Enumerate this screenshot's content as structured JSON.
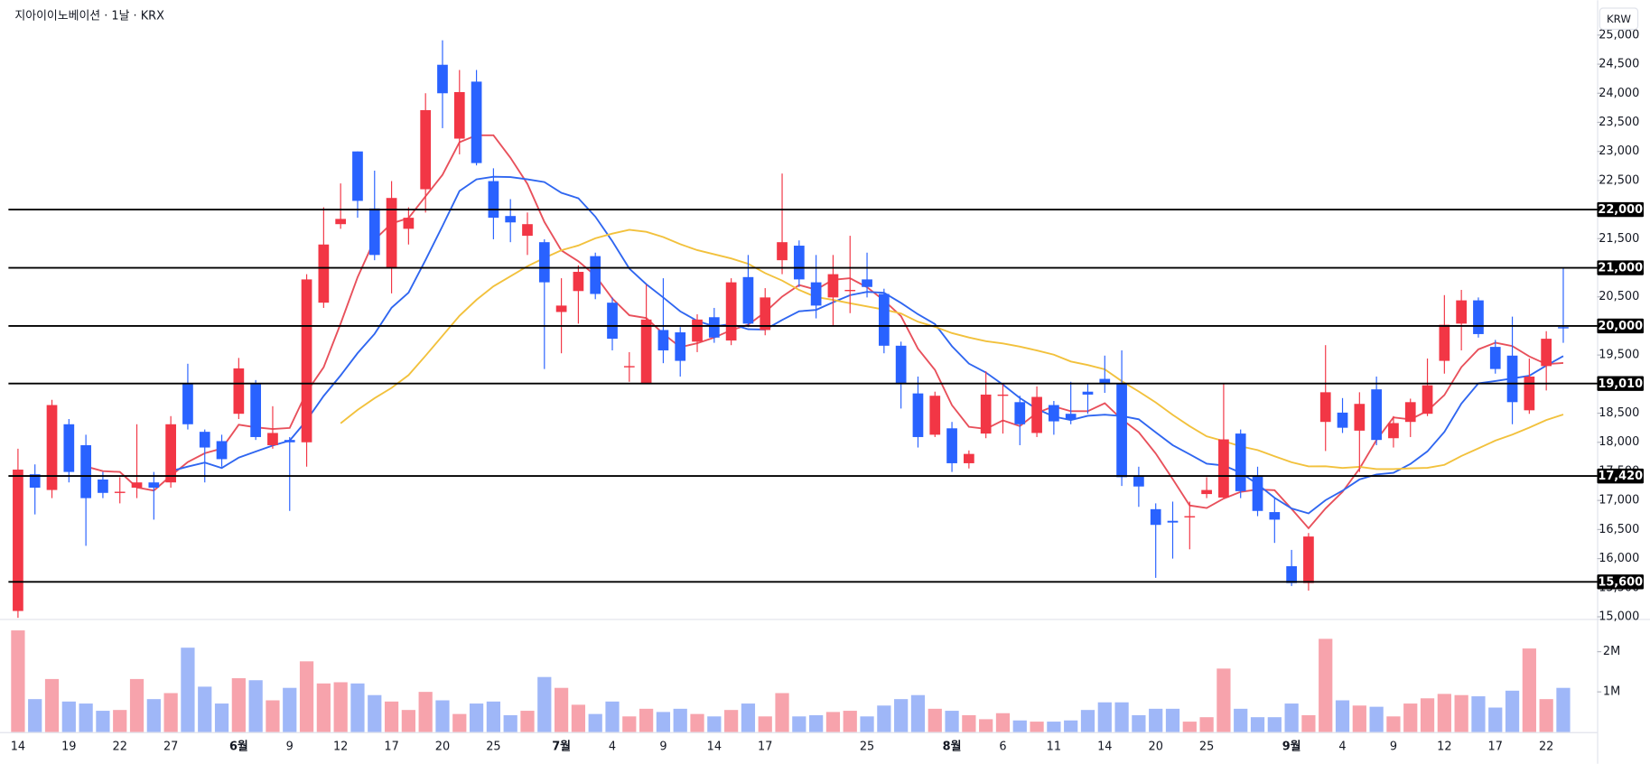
{
  "chart_data": {
    "type": "candlestick",
    "title": "지아이이노베이션 · 1날 · KRX",
    "currency_button": "KRW",
    "categories": [
      "14",
      null,
      null,
      "19",
      null,
      null,
      "22",
      null,
      null,
      "27",
      null,
      null,
      null,
      "6월",
      null,
      null,
      "9",
      null,
      null,
      "12",
      null,
      null,
      "17",
      null,
      null,
      "20",
      null,
      null,
      "25",
      null,
      null,
      null,
      "7월",
      null,
      null,
      "4",
      null,
      null,
      "9",
      null,
      null,
      "14",
      null,
      null,
      "17",
      null,
      null,
      null,
      null,
      null,
      "25",
      null,
      null,
      null,
      null,
      "8월",
      null,
      null,
      "6",
      null,
      null,
      "11",
      null,
      null,
      "14",
      null,
      null,
      "20",
      null,
      null,
      "25",
      null,
      null,
      null,
      null,
      "9월",
      null,
      null,
      "4",
      null,
      null,
      "9",
      null,
      null,
      "12",
      null,
      null,
      "17",
      null,
      null,
      "22",
      null
    ],
    "open": [
      15100,
      17450,
      17180,
      18310,
      17950,
      17360,
      17130,
      17220,
      17310,
      17310,
      19000,
      18180,
      18020,
      18490,
      19000,
      17950,
      18040,
      18000,
      20400,
      21750,
      23000,
      22020,
      21000,
      21670,
      22350,
      24490,
      23220,
      24200,
      22490,
      21890,
      21550,
      21440,
      20240,
      20600,
      21200,
      20400,
      19290,
      19000,
      19930,
      19890,
      19730,
      20150,
      19750,
      20840,
      19930,
      21130,
      21380,
      20750,
      20490,
      20600,
      20800,
      20550,
      19660,
      18840,
      18130,
      18240,
      17640,
      18150,
      18800,
      18690,
      18160,
      18640,
      18490,
      18870,
      19090,
      19000,
      17420,
      16850,
      16650,
      16710,
      17110,
      17050,
      18150,
      17420,
      16800,
      15870,
      15580,
      18350,
      18510,
      18200,
      18910,
      18070,
      18350,
      18490,
      19400,
      20040,
      20440,
      19640,
      19490,
      18550,
      19310,
      19980
    ],
    "high": [
      17890,
      17620,
      18730,
      18400,
      18130,
      17490,
      17400,
      18310,
      17490,
      18450,
      19350,
      18220,
      18130,
      19450,
      19070,
      18620,
      18090,
      20890,
      22040,
      22450,
      23000,
      22670,
      22490,
      22040,
      24000,
      24910,
      24400,
      24400,
      22710,
      22180,
      21950,
      21490,
      20820,
      21040,
      21260,
      20490,
      19550,
      20710,
      20820,
      19980,
      20200,
      20310,
      20820,
      21220,
      20650,
      22620,
      21470,
      21220,
      21220,
      21550,
      21260,
      20640,
      19730,
      19130,
      18870,
      18350,
      17860,
      19220,
      19000,
      18800,
      18960,
      18710,
      19040,
      19000,
      19490,
      19580,
      17580,
      16950,
      16980,
      16980,
      17400,
      19000,
      18220,
      17580,
      17040,
      16150,
      16440,
      19670,
      18760,
      18860,
      19130,
      18450,
      18750,
      19440,
      20530,
      20620,
      20490,
      19760,
      20160,
      19440,
      19910,
      21000
    ],
    "low": [
      14950,
      16760,
      17040,
      17310,
      16220,
      17040,
      16950,
      17040,
      16670,
      17220,
      18220,
      17310,
      17580,
      18400,
      18040,
      17890,
      16820,
      17580,
      20310,
      21670,
      21860,
      21130,
      20560,
      21400,
      21950,
      23400,
      22950,
      22760,
      21490,
      21440,
      21220,
      19260,
      19530,
      20040,
      20460,
      19580,
      19040,
      19000,
      19360,
      19130,
      19550,
      19710,
      19670,
      19980,
      19840,
      20890,
      20670,
      20130,
      20000,
      20220,
      20490,
      19530,
      18580,
      17910,
      18090,
      17490,
      17550,
      18070,
      18150,
      17950,
      18090,
      18130,
      18310,
      18490,
      18850,
      17250,
      16890,
      15670,
      16000,
      16160,
      17040,
      17040,
      17040,
      16730,
      16270,
      15530,
      15450,
      17850,
      18160,
      17490,
      17950,
      17910,
      18090,
      18450,
      19180,
      19580,
      19800,
      19180,
      18310,
      18490,
      18890,
      19710
    ],
    "close": [
      17530,
      17220,
      18640,
      17490,
      17040,
      17130,
      17150,
      17310,
      17220,
      18310,
      18310,
      17910,
      17710,
      19270,
      18090,
      18160,
      18000,
      20800,
      21400,
      21840,
      22150,
      21220,
      22200,
      21860,
      23710,
      24000,
      24020,
      22800,
      21860,
      21780,
      21750,
      20750,
      20350,
      20930,
      20550,
      19780,
      19310,
      20110,
      19580,
      19400,
      20110,
      19800,
      20750,
      20040,
      20490,
      21440,
      20800,
      20350,
      20890,
      20620,
      20670,
      19660,
      19000,
      18090,
      18800,
      17640,
      17800,
      18820,
      18820,
      18310,
      18780,
      18360,
      18400,
      18820,
      19000,
      17400,
      17240,
      16580,
      16620,
      16730,
      17180,
      18050,
      17160,
      16820,
      16670,
      15580,
      16380,
      18860,
      18250,
      18660,
      18040,
      18330,
      18690,
      18980,
      20020,
      20440,
      19860,
      19260,
      18690,
      19130,
      19780,
      19960
    ],
    "volume": [
      2530000,
      820000,
      1320000,
      760000,
      710000,
      530000,
      550000,
      1320000,
      820000,
      970000,
      2100000,
      1130000,
      710000,
      1340000,
      1290000,
      790000,
      1100000,
      1760000,
      1210000,
      1240000,
      1210000,
      920000,
      760000,
      550000,
      1000000,
      790000,
      450000,
      710000,
      760000,
      420000,
      530000,
      1370000,
      1100000,
      680000,
      450000,
      760000,
      390000,
      580000,
      500000,
      580000,
      450000,
      390000,
      550000,
      710000,
      390000,
      970000,
      390000,
      420000,
      500000,
      530000,
      390000,
      660000,
      820000,
      920000,
      580000,
      530000,
      420000,
      320000,
      470000,
      290000,
      260000,
      260000,
      290000,
      550000,
      740000,
      740000,
      420000,
      580000,
      580000,
      260000,
      370000,
      1580000,
      580000,
      370000,
      370000,
      710000,
      420000,
      2320000,
      790000,
      660000,
      630000,
      390000,
      710000,
      840000,
      950000,
      920000,
      890000,
      610000,
      1030000,
      2080000,
      820000,
      1100000
    ],
    "up_color": "#f23645",
    "down_color": "#2962ff",
    "up_volume_color": "#f7a3ac",
    "down_volume_color": "#9fb7f8",
    "moving_averages": [
      {
        "period": 5,
        "color": "#e8505b"
      },
      {
        "period": 10,
        "color": "#2f66f0"
      },
      {
        "period": 20,
        "color": "#f2c13c"
      }
    ],
    "ylim": [
      15000,
      25500
    ],
    "yticks": [
      {
        "value": 15000,
        "label": "15,000"
      },
      {
        "value": 15500,
        "label": "15,500"
      },
      {
        "value": 16000,
        "label": "16,000"
      },
      {
        "value": 16500,
        "label": "16,500"
      },
      {
        "value": 17000,
        "label": "17,000"
      },
      {
        "value": 17500,
        "label": "17,500"
      },
      {
        "value": 18000,
        "label": "18,000"
      },
      {
        "value": 18500,
        "label": "18,500"
      },
      {
        "value": 19000,
        "label": "19,000"
      },
      {
        "value": 19500,
        "label": "19,500"
      },
      {
        "value": 20000,
        "label": "20,000"
      },
      {
        "value": 20500,
        "label": "20,500"
      },
      {
        "value": 21000,
        "label": "21,000"
      },
      {
        "value": 21500,
        "label": "21,500"
      },
      {
        "value": 22000,
        "label": "22,000"
      },
      {
        "value": 22500,
        "label": "22,500"
      },
      {
        "value": 23000,
        "label": "23,000"
      },
      {
        "value": 23500,
        "label": "23,500"
      },
      {
        "value": 24000,
        "label": "24,000"
      },
      {
        "value": 24500,
        "label": "24,500"
      },
      {
        "value": 25000,
        "label": "25,000"
      }
    ],
    "volume_lim": [
      0,
      2700000
    ],
    "volume_ticks": [
      {
        "value": 1000000,
        "label": "1M"
      },
      {
        "value": 2000000,
        "label": "2M"
      }
    ],
    "levels": [
      {
        "value": 22000,
        "label": "22,000"
      },
      {
        "value": 21000,
        "label": "21,000"
      },
      {
        "value": 20000,
        "label": "20,000"
      },
      {
        "value": 19010,
        "label": "19,010"
      },
      {
        "value": 17420,
        "label": "17,420"
      },
      {
        "value": 15600,
        "label": "15,600"
      }
    ],
    "level_color": "#000000"
  }
}
